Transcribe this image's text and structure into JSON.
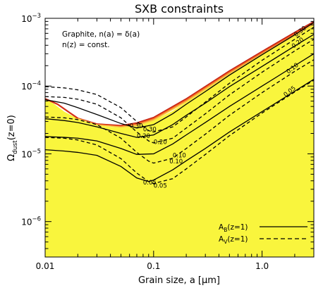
{
  "chart_data": {
    "type": "line",
    "title": "SXB constraints",
    "xlabel": "Grain size, a [μm]",
    "ylabel_main": "Ω",
    "ylabel_sub": "dust",
    "ylabel_tail": "(z=0)",
    "xscale": "log",
    "yscale": "log",
    "xlim": [
      0.01,
      3.0
    ],
    "ylim": [
      3e-07,
      0.001
    ],
    "x_ticks": [
      {
        "value": 0.01,
        "label": "0.01"
      },
      {
        "value": 0.1,
        "label": "0.1"
      },
      {
        "value": 1.0,
        "label": "1.0"
      }
    ],
    "y_ticks": [
      {
        "value": 1e-06,
        "base": "10",
        "exp": "−6"
      },
      {
        "value": 1e-05,
        "base": "10",
        "exp": "−5"
      },
      {
        "value": 0.0001,
        "base": "10",
        "exp": "−4"
      },
      {
        "value": 0.001,
        "base": "10",
        "exp": "−3"
      }
    ],
    "annotations": [
      "Graphite, n(a) = δ(a)",
      "n(z) = const."
    ],
    "legend": {
      "position": "bottom-right",
      "entries": [
        {
          "main": "A",
          "sub": "B",
          "tail": "(z=1)",
          "style": "solid"
        },
        {
          "main": "A",
          "sub": "V",
          "tail": "(z=1)",
          "style": "dashed"
        }
      ]
    },
    "shaded_region": {
      "description_color": "yellow",
      "boundary": [
        [
          0.01,
          6.5e-05
        ],
        [
          0.012,
          5.5e-05
        ],
        [
          0.015,
          4.2e-05
        ],
        [
          0.02,
          3.3e-05
        ],
        [
          0.025,
          2.9e-05
        ],
        [
          0.03,
          2.65e-05
        ],
        [
          0.04,
          2.5e-05
        ],
        [
          0.05,
          2.45e-05
        ],
        [
          0.07,
          2.6e-05
        ],
        [
          0.1,
          3.1e-05
        ],
        [
          0.15,
          4.3e-05
        ],
        [
          0.2,
          5.8e-05
        ],
        [
          0.3,
          8.8e-05
        ],
        [
          0.5,
          0.00015
        ],
        [
          0.7,
          0.000205
        ],
        [
          1.0,
          0.00029
        ],
        [
          1.5,
          0.00043
        ],
        [
          2.0,
          0.00055
        ],
        [
          3.0,
          0.0008
        ]
      ]
    },
    "red_band": {
      "upper": [
        [
          0.02,
          3.4e-05
        ],
        [
          0.03,
          2.8e-05
        ],
        [
          0.05,
          2.65e-05
        ],
        [
          0.07,
          2.9e-05
        ],
        [
          0.1,
          3.5e-05
        ],
        [
          0.2,
          6.6e-05
        ],
        [
          0.5,
          0.00017
        ],
        [
          1.0,
          0.00033
        ],
        [
          2.0,
          0.00063
        ],
        [
          3.0,
          0.00091
        ]
      ],
      "lower": [
        [
          0.02,
          3.3e-05
        ],
        [
          0.03,
          2.65e-05
        ],
        [
          0.05,
          2.45e-05
        ],
        [
          0.07,
          2.6e-05
        ],
        [
          0.1,
          3.1e-05
        ],
        [
          0.2,
          5.8e-05
        ],
        [
          0.5,
          0.00015
        ],
        [
          1.0,
          0.00029
        ],
        [
          2.0,
          0.00055
        ],
        [
          3.0,
          0.0008
        ]
      ]
    },
    "series": [
      {
        "style": "solid",
        "label": "0.30",
        "label_x": 0.06,
        "label_y": 2.6e-05,
        "points": [
          [
            0.01,
            6.3e-05
          ],
          [
            0.015,
            5.6e-05
          ],
          [
            0.02,
            4.8e-05
          ],
          [
            0.03,
            3.8e-05
          ],
          [
            0.05,
            2.8e-05
          ],
          [
            0.07,
            2.4e-05
          ],
          [
            0.1,
            2.7e-05
          ],
          [
            0.15,
            3.9e-05
          ],
          [
            0.2,
            5.4e-05
          ],
          [
            0.3,
            8.3e-05
          ],
          [
            0.5,
            0.000145
          ],
          [
            1.0,
            0.00029
          ],
          [
            2.0,
            0.00057
          ],
          [
            3.0,
            0.00087
          ]
        ]
      },
      {
        "style": "solid",
        "label": "0.20",
        "label_x": 0.07,
        "label_y": 1.85e-05,
        "points": [
          [
            0.01,
            3.3e-05
          ],
          [
            0.015,
            3.1e-05
          ],
          [
            0.02,
            2.9e-05
          ],
          [
            0.03,
            2.5e-05
          ],
          [
            0.05,
            2e-05
          ],
          [
            0.07,
            1.75e-05
          ],
          [
            0.1,
            1.9e-05
          ],
          [
            0.15,
            2.7e-05
          ],
          [
            0.2,
            3.7e-05
          ],
          [
            0.3,
            5.6e-05
          ],
          [
            0.5,
            9.8e-05
          ],
          [
            1.0,
            0.000195
          ],
          [
            2.0,
            0.00039
          ],
          [
            3.0,
            0.00058
          ]
        ]
      },
      {
        "style": "solid",
        "label": "0.10",
        "label_x": 0.15,
        "label_y": 9.5e-06,
        "points": [
          [
            0.01,
            1.8e-05
          ],
          [
            0.015,
            1.75e-05
          ],
          [
            0.02,
            1.7e-05
          ],
          [
            0.03,
            1.55e-05
          ],
          [
            0.05,
            1.2e-05
          ],
          [
            0.07,
            9.8e-06
          ],
          [
            0.1,
            1e-05
          ],
          [
            0.15,
            1.4e-05
          ],
          [
            0.2,
            1.9e-05
          ],
          [
            0.3,
            2.9e-05
          ],
          [
            0.5,
            5e-05
          ],
          [
            1.0,
            0.0001
          ],
          [
            2.0,
            0.0002
          ],
          [
            3.0,
            0.0003
          ]
        ]
      },
      {
        "style": "solid",
        "label": "0.05",
        "label_x": 0.08,
        "label_y": 3.8e-06,
        "points": [
          [
            0.01,
            1.15e-05
          ],
          [
            0.015,
            1.1e-05
          ],
          [
            0.02,
            1.05e-05
          ],
          [
            0.03,
            9.5e-06
          ],
          [
            0.05,
            6.5e-06
          ],
          [
            0.07,
            4.4e-06
          ],
          [
            0.09,
            3.9e-06
          ],
          [
            0.1,
            4.1e-06
          ],
          [
            0.15,
            5.8e-06
          ],
          [
            0.2,
            7.9e-06
          ],
          [
            0.3,
            1.2e-05
          ],
          [
            0.5,
            2.1e-05
          ],
          [
            1.0,
            4.2e-05
          ],
          [
            2.0,
            8.4e-05
          ],
          [
            3.0,
            0.000126
          ]
        ]
      },
      {
        "style": "dashed",
        "label": "0.30",
        "label_x": 0.08,
        "label_y": 2.3e-05,
        "points": [
          [
            0.01,
            9.8e-05
          ],
          [
            0.015,
            9.4e-05
          ],
          [
            0.02,
            8.8e-05
          ],
          [
            0.03,
            7.5e-05
          ],
          [
            0.05,
            4.8e-05
          ],
          [
            0.07,
            3e-05
          ],
          [
            0.09,
            2.2e-05
          ],
          [
            0.1,
            2.1e-05
          ],
          [
            0.15,
            2.5e-05
          ],
          [
            0.2,
            3.5e-05
          ],
          [
            0.3,
            5.8e-05
          ],
          [
            0.5,
            0.00011
          ],
          [
            1.0,
            0.00024
          ],
          [
            2.0,
            0.00049
          ],
          [
            3.0,
            0.00074
          ]
        ]
      },
      {
        "style": "dashed",
        "label": "0.20",
        "label_x": 0.1,
        "label_y": 1.5e-05,
        "points": [
          [
            0.01,
            7e-05
          ],
          [
            0.015,
            6.8e-05
          ],
          [
            0.02,
            6.4e-05
          ],
          [
            0.03,
            5.4e-05
          ],
          [
            0.05,
            3.4e-05
          ],
          [
            0.07,
            2.1e-05
          ],
          [
            0.09,
            1.55e-05
          ],
          [
            0.1,
            1.45e-05
          ],
          [
            0.15,
            1.7e-05
          ],
          [
            0.2,
            2.4e-05
          ],
          [
            0.3,
            3.9e-05
          ],
          [
            0.5,
            7.4e-05
          ],
          [
            1.0,
            0.00016
          ],
          [
            2.0,
            0.00033
          ],
          [
            3.0,
            0.00049
          ]
        ]
      },
      {
        "style": "dashed",
        "label": "0.10",
        "label_x": 0.14,
        "label_y": 7.8e-06,
        "points": [
          [
            0.01,
            3.5e-05
          ],
          [
            0.015,
            3.4e-05
          ],
          [
            0.02,
            3.2e-05
          ],
          [
            0.03,
            2.7e-05
          ],
          [
            0.05,
            1.7e-05
          ],
          [
            0.07,
            1.05e-05
          ],
          [
            0.09,
            7.8e-06
          ],
          [
            0.1,
            7.3e-06
          ],
          [
            0.15,
            8.6e-06
          ],
          [
            0.2,
            1.2e-05
          ],
          [
            0.3,
            1.95e-05
          ],
          [
            0.5,
            3.7e-05
          ],
          [
            1.0,
            8e-05
          ],
          [
            2.0,
            0.000165
          ],
          [
            3.0,
            0.000245
          ]
        ]
      },
      {
        "style": "dashed",
        "label": "0.05",
        "label_x": 0.1,
        "label_y": 3.4e-06,
        "points": [
          [
            0.01,
            1.75e-05
          ],
          [
            0.015,
            1.7e-05
          ],
          [
            0.02,
            1.6e-05
          ],
          [
            0.03,
            1.35e-05
          ],
          [
            0.05,
            8.5e-06
          ],
          [
            0.07,
            5.2e-06
          ],
          [
            0.09,
            3.9e-06
          ],
          [
            0.1,
            3.65e-06
          ],
          [
            0.15,
            4.3e-06
          ],
          [
            0.2,
            6e-06
          ],
          [
            0.3,
            9.8e-06
          ],
          [
            0.5,
            1.85e-05
          ],
          [
            1.0,
            4e-05
          ],
          [
            2.0,
            8.2e-05
          ],
          [
            3.0,
            0.000122
          ]
        ]
      }
    ],
    "right_labels": [
      {
        "text": "0.30",
        "x": 2.0,
        "y": 0.00056
      },
      {
        "text": "0.20",
        "x": 1.9,
        "y": 0.00038
      },
      {
        "text": "0.10",
        "x": 1.7,
        "y": 0.00016
      },
      {
        "text": "0.05",
        "x": 1.6,
        "y": 7.3e-05
      }
    ],
    "colors": {
      "yellow": "#f9f53d",
      "band_colors": [
        "#b81a10",
        "#d52e17",
        "#e9501f",
        "#f3772a",
        "#f7a23a",
        "#f9c844"
      ],
      "line": "#000000"
    }
  }
}
